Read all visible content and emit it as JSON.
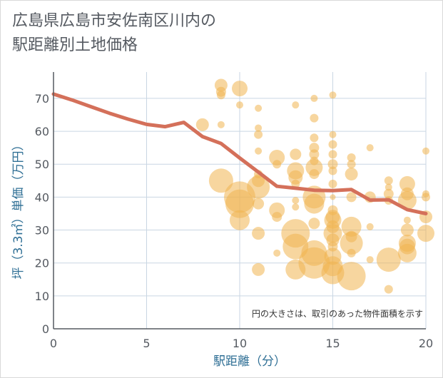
{
  "title": "広島県広島市安佐南区川内の\n駅距離別土地価格",
  "chart_data": {
    "type": "scatter",
    "title": "広島県広島市安佐南区川内の駅距離別土地価格",
    "xlabel": "駅距離（分）",
    "ylabel": "坪（3.3㎡）単価（万円）",
    "note": "円の大きさは、取引のあった物件面積を示す",
    "xlim": [
      0,
      20
    ],
    "ylim": [
      0,
      78
    ],
    "xticks": [
      0,
      5,
      10,
      15,
      20
    ],
    "yticks": [
      0,
      10,
      20,
      30,
      40,
      50,
      60,
      70
    ],
    "grid": true,
    "colors": {
      "points": "#f0b550",
      "line": "#d4705a",
      "grid": "#c9d6e3",
      "axis": "#555a61"
    },
    "series": [
      {
        "type": "scatter",
        "points": [
          {
            "x": 9,
            "y": 74,
            "s": 9
          },
          {
            "x": 9,
            "y": 72,
            "s": 7
          },
          {
            "x": 9,
            "y": 71,
            "s": 6
          },
          {
            "x": 10,
            "y": 73,
            "s": 11
          },
          {
            "x": 10,
            "y": 68,
            "s": 5
          },
          {
            "x": 11,
            "y": 67,
            "s": 5
          },
          {
            "x": 11,
            "y": 61,
            "s": 5
          },
          {
            "x": 11,
            "y": 59,
            "s": 6
          },
          {
            "x": 8,
            "y": 62,
            "s": 9
          },
          {
            "x": 9,
            "y": 62,
            "s": 5
          },
          {
            "x": 11,
            "y": 54,
            "s": 5
          },
          {
            "x": 12,
            "y": 52,
            "s": 11
          },
          {
            "x": 12,
            "y": 50,
            "s": 6
          },
          {
            "x": 9,
            "y": 45,
            "s": 17
          },
          {
            "x": 10,
            "y": 40,
            "s": 22
          },
          {
            "x": 10,
            "y": 38,
            "s": 20
          },
          {
            "x": 10,
            "y": 33,
            "s": 14
          },
          {
            "x": 11,
            "y": 47,
            "s": 6
          },
          {
            "x": 11,
            "y": 45,
            "s": 9
          },
          {
            "x": 11,
            "y": 43,
            "s": 16
          },
          {
            "x": 11,
            "y": 38,
            "s": 8
          },
          {
            "x": 11,
            "y": 29,
            "s": 9
          },
          {
            "x": 11,
            "y": 18,
            "s": 9
          },
          {
            "x": 12,
            "y": 36,
            "s": 11
          },
          {
            "x": 12,
            "y": 34,
            "s": 7
          },
          {
            "x": 12,
            "y": 23,
            "s": 5
          },
          {
            "x": 13,
            "y": 68,
            "s": 5
          },
          {
            "x": 13,
            "y": 53,
            "s": 8
          },
          {
            "x": 13,
            "y": 48,
            "s": 12
          },
          {
            "x": 13,
            "y": 46,
            "s": 10
          },
          {
            "x": 13,
            "y": 44,
            "s": 6
          },
          {
            "x": 13,
            "y": 39,
            "s": 5
          },
          {
            "x": 13,
            "y": 37,
            "s": 5
          },
          {
            "x": 13,
            "y": 29,
            "s": 20
          },
          {
            "x": 13,
            "y": 25,
            "s": 18
          },
          {
            "x": 13,
            "y": 18,
            "s": 14
          },
          {
            "x": 14,
            "y": 70,
            "s": 5
          },
          {
            "x": 14,
            "y": 64,
            "s": 6
          },
          {
            "x": 14,
            "y": 58,
            "s": 6
          },
          {
            "x": 14,
            "y": 55,
            "s": 7
          },
          {
            "x": 14,
            "y": 53,
            "s": 7
          },
          {
            "x": 14,
            "y": 51,
            "s": 6
          },
          {
            "x": 14,
            "y": 49,
            "s": 12
          },
          {
            "x": 14,
            "y": 47,
            "s": 7
          },
          {
            "x": 14,
            "y": 40,
            "s": 16
          },
          {
            "x": 14,
            "y": 38,
            "s": 14
          },
          {
            "x": 14,
            "y": 32,
            "s": 8
          },
          {
            "x": 14,
            "y": 23,
            "s": 18
          },
          {
            "x": 14,
            "y": 20,
            "s": 22
          },
          {
            "x": 15,
            "y": 71,
            "s": 5
          },
          {
            "x": 15,
            "y": 59,
            "s": 5
          },
          {
            "x": 15,
            "y": 56,
            "s": 6
          },
          {
            "x": 15,
            "y": 53,
            "s": 6
          },
          {
            "x": 15,
            "y": 50,
            "s": 7
          },
          {
            "x": 15,
            "y": 48,
            "s": 6
          },
          {
            "x": 15,
            "y": 44,
            "s": 6
          },
          {
            "x": 15,
            "y": 40,
            "s": 4
          },
          {
            "x": 15,
            "y": 36,
            "s": 7
          },
          {
            "x": 15,
            "y": 34,
            "s": 10
          },
          {
            "x": 15,
            "y": 33,
            "s": 12
          },
          {
            "x": 15,
            "y": 31,
            "s": 9
          },
          {
            "x": 15,
            "y": 29,
            "s": 13
          },
          {
            "x": 15,
            "y": 27,
            "s": 9
          },
          {
            "x": 15,
            "y": 25,
            "s": 7
          },
          {
            "x": 15,
            "y": 22,
            "s": 12
          },
          {
            "x": 15,
            "y": 19,
            "s": 14
          },
          {
            "x": 15,
            "y": 17,
            "s": 16
          },
          {
            "x": 16,
            "y": 52,
            "s": 6
          },
          {
            "x": 16,
            "y": 50,
            "s": 6
          },
          {
            "x": 16,
            "y": 47,
            "s": 9
          },
          {
            "x": 16,
            "y": 40,
            "s": 7
          },
          {
            "x": 16,
            "y": 31,
            "s": 14
          },
          {
            "x": 16,
            "y": 28,
            "s": 8
          },
          {
            "x": 16,
            "y": 26,
            "s": 16
          },
          {
            "x": 16,
            "y": 23,
            "s": 6
          },
          {
            "x": 16,
            "y": 16,
            "s": 20
          },
          {
            "x": 17,
            "y": 55,
            "s": 5
          },
          {
            "x": 17,
            "y": 40,
            "s": 8
          },
          {
            "x": 17,
            "y": 31,
            "s": 5
          },
          {
            "x": 17,
            "y": 21,
            "s": 5
          },
          {
            "x": 18,
            "y": 45,
            "s": 6
          },
          {
            "x": 18,
            "y": 43,
            "s": 5
          },
          {
            "x": 18,
            "y": 41,
            "s": 7
          },
          {
            "x": 18,
            "y": 39,
            "s": 6
          },
          {
            "x": 18,
            "y": 21,
            "s": 17
          },
          {
            "x": 18,
            "y": 12,
            "s": 6
          },
          {
            "x": 19,
            "y": 44,
            "s": 11
          },
          {
            "x": 19,
            "y": 41,
            "s": 9
          },
          {
            "x": 19,
            "y": 39,
            "s": 13
          },
          {
            "x": 19,
            "y": 33,
            "s": 5
          },
          {
            "x": 19,
            "y": 30,
            "s": 9
          },
          {
            "x": 19,
            "y": 26,
            "s": 12
          },
          {
            "x": 19,
            "y": 25,
            "s": 11
          },
          {
            "x": 19,
            "y": 23,
            "s": 13
          },
          {
            "x": 20,
            "y": 54,
            "s": 5
          },
          {
            "x": 20,
            "y": 41,
            "s": 5
          },
          {
            "x": 20,
            "y": 40,
            "s": 6
          },
          {
            "x": 20,
            "y": 34,
            "s": 9
          },
          {
            "x": 20,
            "y": 29,
            "s": 12
          }
        ]
      },
      {
        "type": "line",
        "points": [
          [
            0,
            71.3
          ],
          [
            1,
            69.5
          ],
          [
            2,
            67.5
          ],
          [
            3,
            65.5
          ],
          [
            4,
            63.7
          ],
          [
            5,
            62.1
          ],
          [
            6,
            61.4
          ],
          [
            7,
            62.7
          ],
          [
            8,
            58.4
          ],
          [
            9,
            56.3
          ],
          [
            10,
            51.9
          ],
          [
            11,
            47.6
          ],
          [
            12,
            43.3
          ],
          [
            13,
            42.7
          ],
          [
            14,
            42.1
          ],
          [
            15,
            42.0
          ],
          [
            16,
            42.3
          ],
          [
            17,
            39.1
          ],
          [
            18,
            39.2
          ],
          [
            19,
            36.2
          ],
          [
            20,
            35.0
          ]
        ]
      }
    ]
  }
}
